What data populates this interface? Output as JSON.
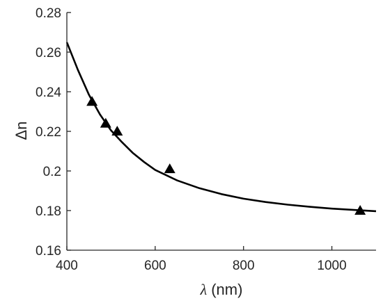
{
  "chart_data": {
    "type": "scatter",
    "xlabel_symbol": "λ",
    "xlabel_unit": " (nm)",
    "ylabel": "Δn",
    "xlim": [
      400,
      1100
    ],
    "ylim": [
      0.16,
      0.28
    ],
    "x_ticks": [
      400,
      600,
      800,
      1000
    ],
    "x_tick_labels": [
      "400",
      "600",
      "800",
      "1000"
    ],
    "y_ticks": [
      0.16,
      0.18,
      0.2,
      0.22,
      0.24,
      0.26,
      0.28
    ],
    "y_tick_labels": [
      "0.16",
      "0.18",
      "0.2",
      "0.22",
      "0.24",
      "0.26",
      "0.28"
    ],
    "grid": false,
    "series": [
      {
        "kind": "markers",
        "marker": "triangle",
        "color": "#000000",
        "x": [
          457,
          488,
          514,
          633,
          1064
        ],
        "y": [
          0.235,
          0.224,
          0.22,
          0.201,
          0.18
        ]
      },
      {
        "kind": "fit-line",
        "color": "#000000",
        "x": [
          400,
          425,
          450,
          475,
          500,
          525,
          550,
          575,
          600,
          650,
          700,
          750,
          800,
          850,
          900,
          950,
          1000,
          1050,
          1100
        ],
        "y": [
          0.265,
          0.251,
          0.2385,
          0.2285,
          0.2205,
          0.2145,
          0.209,
          0.2045,
          0.2005,
          0.1952,
          0.1913,
          0.1883,
          0.186,
          0.1843,
          0.183,
          0.1819,
          0.181,
          0.1803,
          0.1797
        ]
      }
    ]
  }
}
